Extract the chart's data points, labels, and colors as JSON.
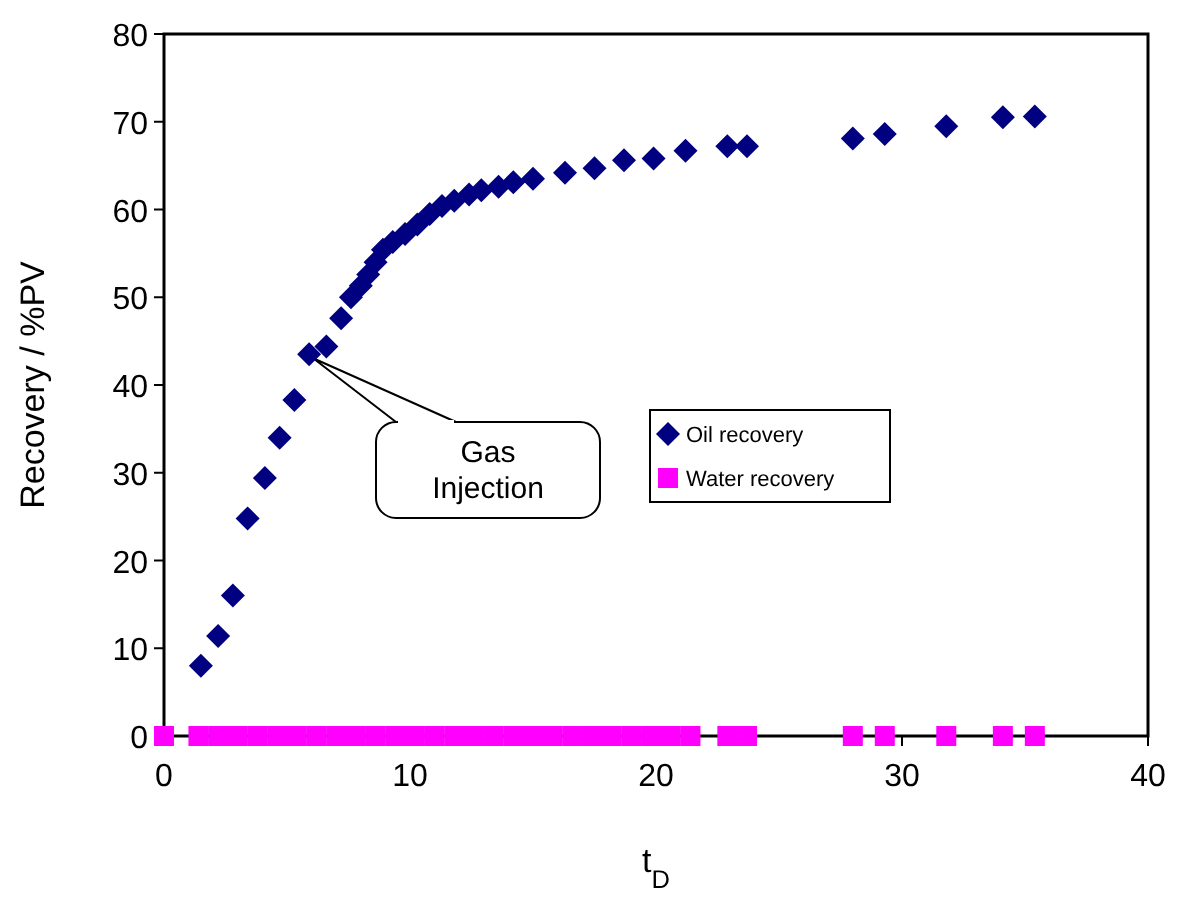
{
  "chart_data": {
    "type": "scatter",
    "xlabel": "t$_{D}$",
    "ylabel": "Recovery / %PV",
    "xlim": [
      0,
      40
    ],
    "ylim": [
      0,
      80
    ],
    "xticks": [
      0,
      10,
      20,
      30,
      40
    ],
    "yticks": [
      0,
      10,
      20,
      30,
      40,
      50,
      60,
      70,
      80
    ],
    "grid": false,
    "legend": "right",
    "series": [
      {
        "name": "Oil recovery",
        "color": "#000080",
        "marker": "diamond",
        "x": [
          1.5,
          2.2,
          2.8,
          3.4,
          4.1,
          4.7,
          5.3,
          5.9,
          6.6,
          7.2,
          7.6,
          8.0,
          8.3,
          8.6,
          8.9,
          9.3,
          9.8,
          10.3,
          10.8,
          11.3,
          11.8,
          12.4,
          12.9,
          13.6,
          14.2,
          15.0,
          16.3,
          17.5,
          18.7,
          19.9,
          21.2,
          22.9,
          23.7,
          28.0,
          29.3,
          31.8,
          34.1,
          35.4
        ],
        "values": [
          8,
          11.4,
          16,
          24.8,
          29.4,
          34,
          38.3,
          43.5,
          44.4,
          47.6,
          50,
          51.3,
          52.6,
          54,
          55.4,
          56.3,
          57.2,
          58.3,
          59.5,
          60.4,
          61,
          61.7,
          62.2,
          62.6,
          63.1,
          63.5,
          64.2,
          64.7,
          65.6,
          65.8,
          66.7,
          67.2,
          67.2,
          68.1,
          68.6,
          69.5,
          70.5,
          70.6
        ]
      },
      {
        "name": "Water recovery",
        "color": "#ff00ff",
        "marker": "square",
        "x": [
          0,
          1.4,
          2.2,
          3.0,
          3.8,
          4.6,
          5.4,
          6.2,
          7.0,
          7.8,
          8.6,
          9.4,
          10.2,
          11.0,
          11.8,
          12.6,
          13.4,
          14.2,
          15.0,
          15.8,
          16.6,
          17.4,
          18.2,
          19.0,
          19.8,
          20.6,
          21.4,
          22.9,
          23.7,
          28.0,
          29.3,
          31.8,
          34.1,
          35.4
        ],
        "values": [
          0,
          0,
          0,
          0,
          0,
          0,
          0,
          0,
          0,
          0,
          0,
          0,
          0,
          0,
          0,
          0,
          0,
          0,
          0,
          0,
          0,
          0,
          0,
          0,
          0,
          0,
          0,
          0,
          0,
          0,
          0,
          0,
          0,
          0
        ]
      }
    ],
    "annotations": [
      {
        "text": "Gas Injection",
        "x": 5.9,
        "y": 43.5
      }
    ]
  }
}
